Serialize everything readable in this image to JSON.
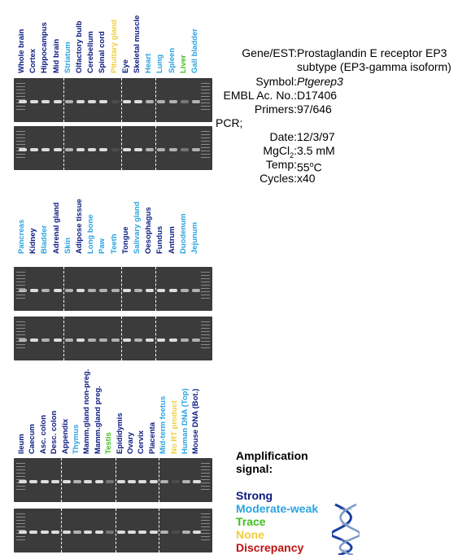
{
  "colors": {
    "strong": "#0a1a80",
    "moderate": "#2aa3e0",
    "trace": "#3fbf1f",
    "none": "#f0cf3a",
    "discrepancy": "#c01010"
  },
  "panels": [
    {
      "lanes": [
        {
          "label": "Whole brain",
          "signal": "strong"
        },
        {
          "label": "Cortex",
          "signal": "strong"
        },
        {
          "label": "Hippocampus",
          "signal": "strong"
        },
        {
          "label": "Mid brain",
          "signal": "strong"
        },
        {
          "label": "Striatum",
          "signal": "moderate"
        },
        {
          "label": "Olfactory bulb",
          "signal": "strong"
        },
        {
          "label": "Cerebellum",
          "signal": "strong"
        },
        {
          "label": "Spinal cord",
          "signal": "strong"
        },
        {
          "label": "Pituitary gland",
          "signal": "none"
        },
        {
          "label": "Eye",
          "signal": "strong"
        },
        {
          "label": "Skeletal muscle",
          "signal": "strong"
        },
        {
          "label": "Heart",
          "signal": "moderate"
        },
        {
          "label": "Lung",
          "signal": "moderate"
        },
        {
          "label": "Spleen",
          "signal": "moderate"
        },
        {
          "label": "Liver",
          "signal": "trace"
        },
        {
          "label": "Gall bladder",
          "signal": "moderate"
        }
      ],
      "separators": [
        4,
        9,
        12
      ]
    },
    {
      "lanes": [
        {
          "label": "Pancreas",
          "signal": "moderate"
        },
        {
          "label": "Kidney",
          "signal": "strong"
        },
        {
          "label": "Bladder",
          "signal": "moderate"
        },
        {
          "label": "Adrenal gland",
          "signal": "strong"
        },
        {
          "label": "Skin",
          "signal": "moderate"
        },
        {
          "label": "Adipose tissue",
          "signal": "strong"
        },
        {
          "label": "Long bone",
          "signal": "moderate"
        },
        {
          "label": "Paw",
          "signal": "moderate"
        },
        {
          "label": "Teeth",
          "signal": "moderate"
        },
        {
          "label": "Tongue",
          "signal": "strong"
        },
        {
          "label": "Salivary gland",
          "signal": "moderate"
        },
        {
          "label": "Oesophagus",
          "signal": "strong"
        },
        {
          "label": "Fundus",
          "signal": "strong"
        },
        {
          "label": "Antrum",
          "signal": "strong"
        },
        {
          "label": "Duodenum",
          "signal": "moderate"
        },
        {
          "label": "Jejunum",
          "signal": "moderate"
        }
      ],
      "separators": [
        4,
        9,
        12
      ]
    },
    {
      "lanes": [
        {
          "label": "Ileum",
          "signal": "strong"
        },
        {
          "label": "Caecum",
          "signal": "strong"
        },
        {
          "label": "Asc. colon",
          "signal": "strong"
        },
        {
          "label": "Desc. colon",
          "signal": "strong"
        },
        {
          "label": "Appendix",
          "signal": "strong"
        },
        {
          "label": "Thymus",
          "signal": "moderate"
        },
        {
          "label": "Mamm.gland non-preg.",
          "signal": "strong"
        },
        {
          "label": "Mamm.gland preg.",
          "signal": "strong"
        },
        {
          "label": "Testis",
          "signal": "trace"
        },
        {
          "label": "Epididymis",
          "signal": "strong"
        },
        {
          "label": "Ovary",
          "signal": "strong"
        },
        {
          "label": "Cervix",
          "signal": "strong"
        },
        {
          "label": "Placenta",
          "signal": "strong"
        },
        {
          "label": "Mid-term foetus",
          "signal": "moderate"
        },
        {
          "label": "No RT product",
          "signal": "none"
        },
        {
          "label": "Human DNA (Top)",
          "signal": "moderate"
        },
        {
          "label": "Mouse DNA (Bot.)",
          "signal": "strong"
        }
      ],
      "separators": [
        4,
        9,
        13
      ]
    }
  ],
  "info": {
    "gene_key": "Gene/EST:",
    "gene_line1": "Prostaglandin E receptor EP3",
    "gene_line2": "subtype (EP3-gamma isoform)",
    "symbol_key": "Symbol:",
    "symbol_val": "Ptgerep3",
    "embl_key": "EMBL Ac. No.:",
    "embl_val": "D17406",
    "primers_key": "Primers:",
    "primers_val": "97/646",
    "pcr_key": "PCR;",
    "date_key": "Date:",
    "date_val": "12/3/97",
    "mgcl_key_pre": "MgCl",
    "mgcl_key_sub": "2",
    "mgcl_key_post": ":",
    "mgcl_val": "3.5 mM",
    "temp_key": "Temp:",
    "temp_val_pre": "55",
    "temp_val_sup": "o",
    "temp_val_post": "C",
    "cycles_key": "Cycles:",
    "cycles_val": "x40"
  },
  "legend": {
    "title_line1": "Amplification",
    "title_line2": "signal:",
    "items": [
      {
        "label": "Strong",
        "signal": "strong"
      },
      {
        "label": "Moderate-weak",
        "signal": "moderate"
      },
      {
        "label": "Trace",
        "signal": "trace"
      },
      {
        "label": "None",
        "signal": "none"
      },
      {
        "label": "Discrepancy",
        "signal": "discrepancy"
      }
    ]
  }
}
